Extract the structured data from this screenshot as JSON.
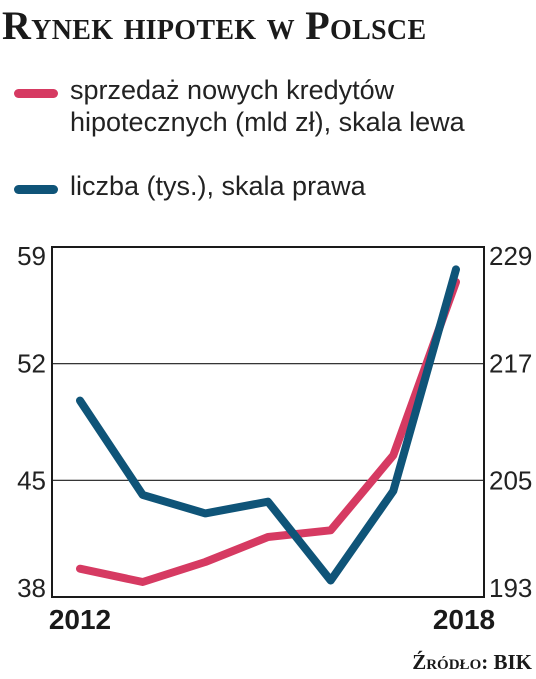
{
  "title": "Rynek hipotek w Polsce",
  "source": "Źródło: BIK",
  "chart_data": {
    "type": "line",
    "x": [
      2012,
      2013,
      2014,
      2015,
      2016,
      2017,
      2018
    ],
    "x_tick_labels": [
      "2012",
      "2018"
    ],
    "grid": true,
    "legend_position": "top",
    "series": [
      {
        "name": "sprzedaż nowych kredytów hipotecznych (mld zł), skala lewa",
        "axis": "left",
        "color": "#d63a62",
        "values": [
          39.7,
          38.9,
          40.1,
          41.6,
          42.0,
          46.5,
          56.9
        ]
      },
      {
        "name": "liczba (tys.), skala prawa",
        "axis": "right",
        "color": "#0f5478",
        "values": [
          213.2,
          203.5,
          201.6,
          202.8,
          194.7,
          203.9,
          226.7
        ]
      }
    ],
    "y_left": {
      "lim": [
        38,
        59
      ],
      "ticks": [
        "38",
        "45",
        "52",
        "59"
      ]
    },
    "y_right": {
      "lim": [
        193,
        229
      ],
      "ticks": [
        "193",
        "205",
        "217",
        "229"
      ]
    }
  }
}
